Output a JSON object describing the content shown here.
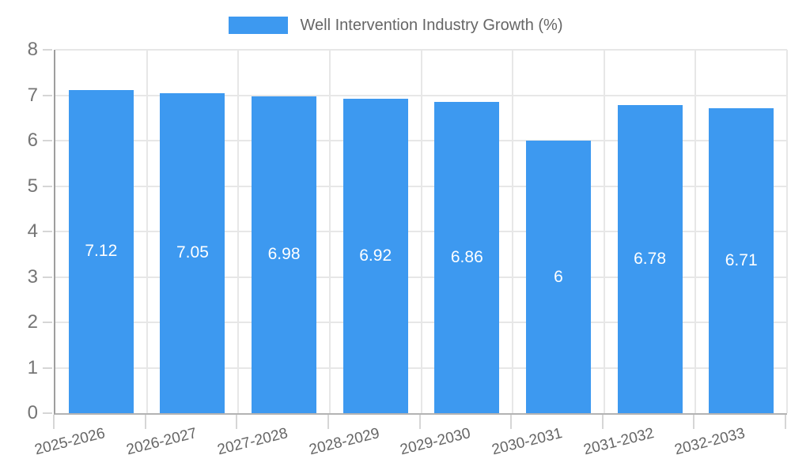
{
  "chart_data": {
    "type": "bar",
    "title": "Well Intervention Industry Growth (%)",
    "legend": {
      "label": "Well Intervention Industry Growth (%)",
      "position": "top"
    },
    "categories": [
      "2025-2026",
      "2026-2027",
      "2027-2028",
      "2028-2029",
      "2029-2030",
      "2030-2031",
      "2031-2032",
      "2032-2033"
    ],
    "series": [
      {
        "name": "Well Intervention Industry Growth (%)",
        "values": [
          7.12,
          7.05,
          6.98,
          6.92,
          6.86,
          6,
          6.78,
          6.71
        ]
      }
    ],
    "value_labels": [
      "7.12",
      "7.05",
      "6.98",
      "6.92",
      "6.86",
      "6",
      "6.78",
      "6.71"
    ],
    "xlabel": "",
    "ylabel": "",
    "ylim": [
      0,
      8
    ],
    "y_ticks": [
      0,
      1,
      2,
      3,
      4,
      5,
      6,
      7,
      8
    ],
    "grid": "on",
    "x_label_rotation_deg": -14,
    "colors": {
      "bar": "#3D99F0",
      "bar_value_text": "#FFFFFF",
      "grid": "#E7E7E7",
      "axis_line_y": "#9E9E9E",
      "axis_line_x": "#B3B3B3",
      "tick_mark": "#D6D6D6",
      "y_tick_text": "#757575",
      "x_tick_text": "#666666",
      "legend_text": "#666666",
      "background": "#FFFFFF"
    }
  }
}
